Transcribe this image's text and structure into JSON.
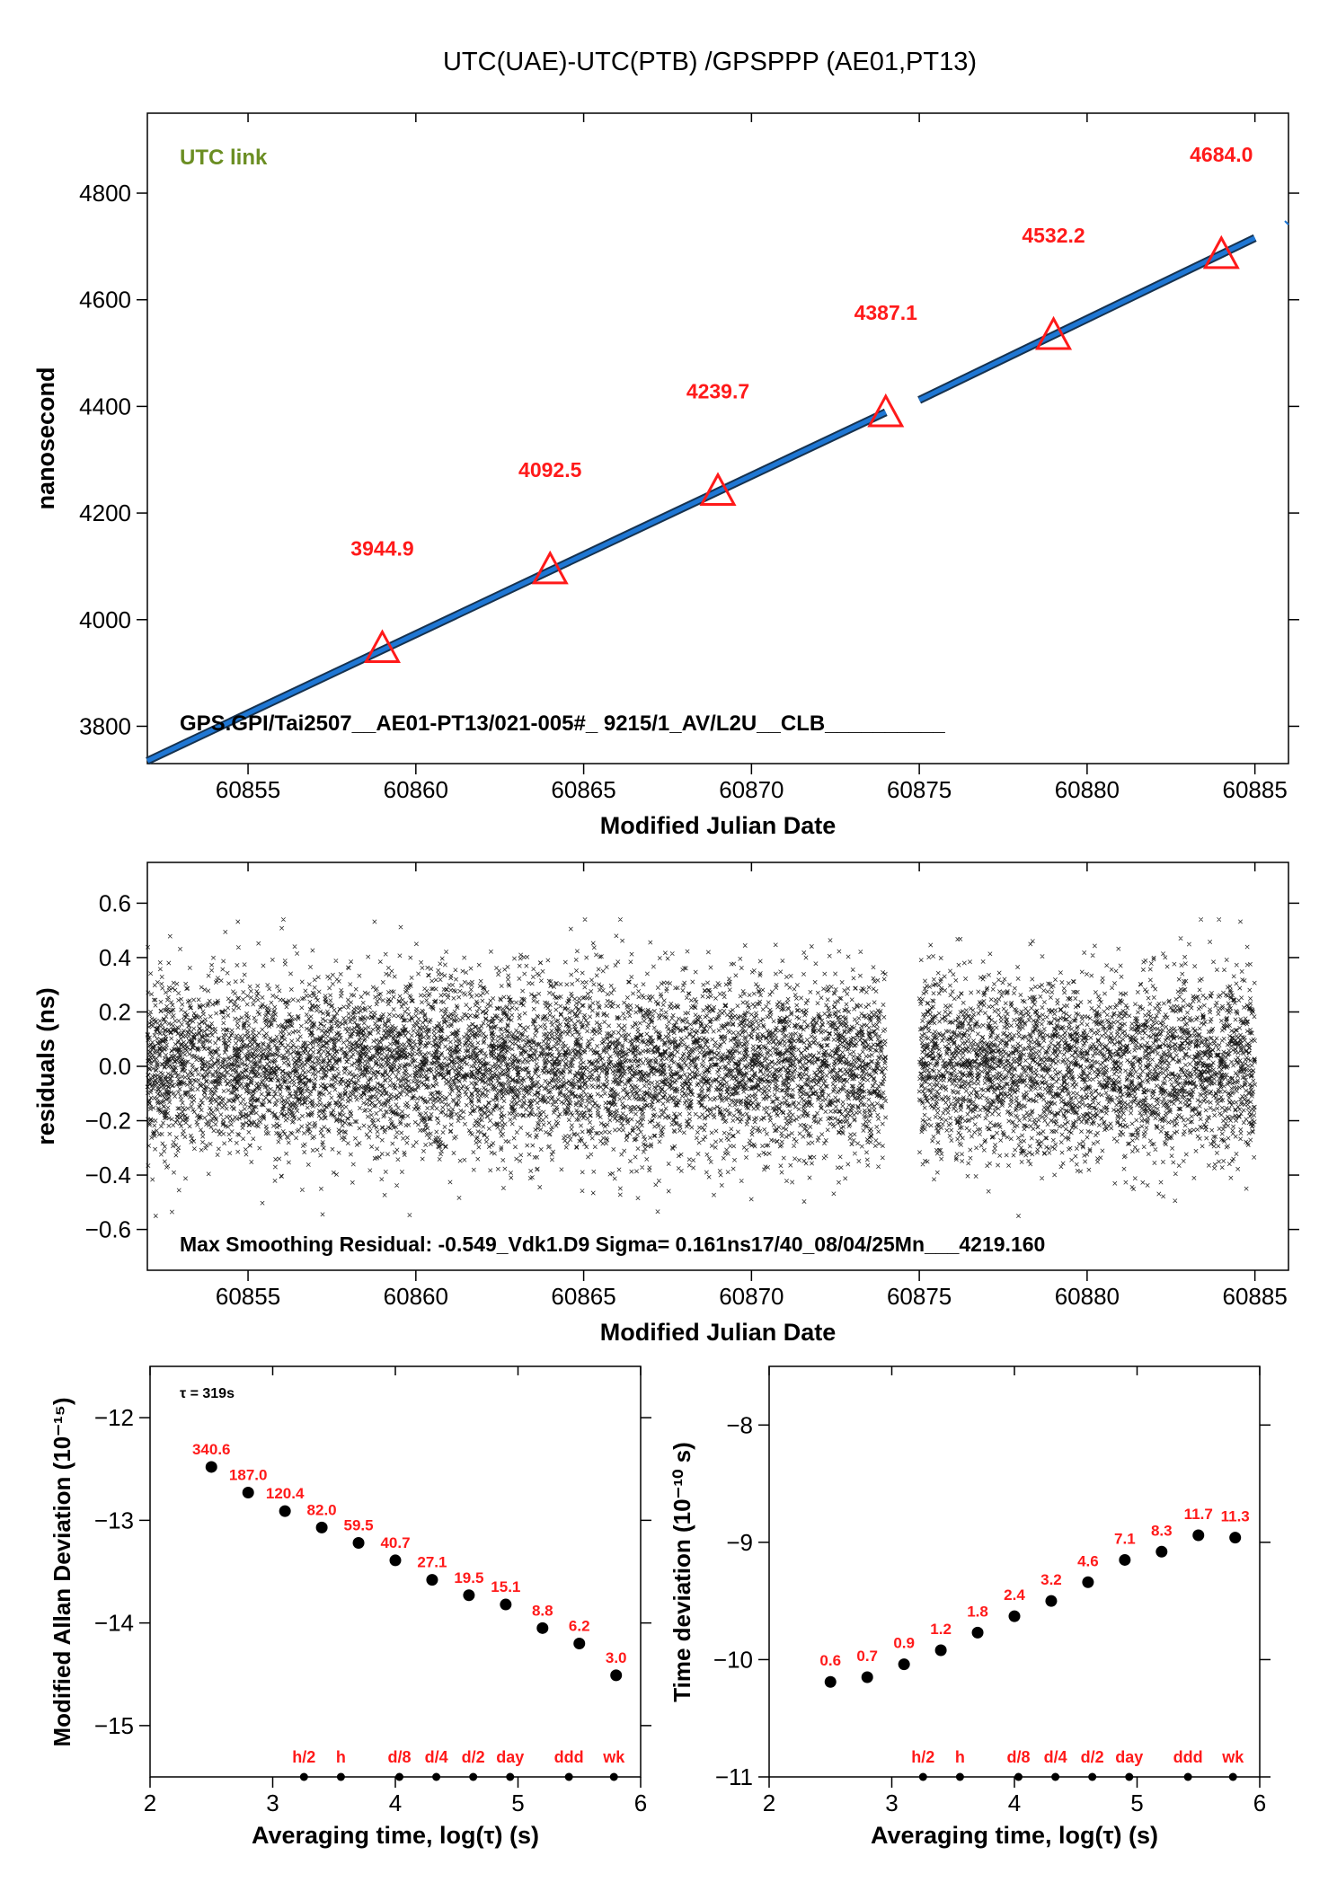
{
  "page_title": "UTC(UAE)-UTC(PTB)  /GPSPPP  (AE01,PT13)",
  "colors": {
    "red": "#ff1a1a",
    "green": "#6b8e23",
    "blue": "#1f77d4",
    "black": "#000000"
  },
  "chart_data": [
    {
      "type": "line",
      "name": "time-offset",
      "link_label": "UTC link",
      "xlabel": "Modified Julian Date",
      "ylabel": "nanosecond",
      "xlim": [
        60852,
        60886
      ],
      "ylim": [
        3730,
        4950
      ],
      "xticks": [
        60855,
        60860,
        60865,
        60870,
        60875,
        60880,
        60885
      ],
      "yticks": [
        3800,
        4000,
        4200,
        4400,
        4600,
        4800
      ],
      "series": [
        {
          "x": [
            60852,
            60874
          ],
          "y": [
            3735,
            4389
          ]
        },
        {
          "x": [
            60875,
            60885
          ],
          "y": [
            4412,
            4716
          ]
        }
      ],
      "markers": [
        {
          "x": 60859,
          "y": 3944.9,
          "label": "3944.9"
        },
        {
          "x": 60864,
          "y": 4092.5,
          "label": "4092.5"
        },
        {
          "x": 60869,
          "y": 4239.7,
          "label": "4239.7"
        },
        {
          "x": 60874,
          "y": 4387.1,
          "label": "4387.1"
        },
        {
          "x": 60879,
          "y": 4532.2,
          "label": "4532.2"
        },
        {
          "x": 60884,
          "y": 4684.0,
          "label": "4684.0"
        }
      ],
      "footnote": "GPS.GPI/Tai2507__AE01-PT13/021-005#_  9215/1_AV/L2U__CLB__________"
    },
    {
      "type": "scatter",
      "name": "residuals",
      "xlabel": "Modified Julian Date",
      "ylabel": "residuals (ns)",
      "xlim": [
        60852,
        60886
      ],
      "ylim": [
        -0.75,
        0.75
      ],
      "xticks": [
        60855,
        60860,
        60865,
        60870,
        60875,
        60880,
        60885
      ],
      "yticks": [
        -0.6,
        -0.4,
        -0.2,
        0.0,
        0.2,
        0.4,
        0.6
      ],
      "ytick_labels": [
        "−0.6",
        "−0.4",
        "−0.2",
        "0.0",
        "0.2",
        "0.4",
        "0.6"
      ],
      "segments": [
        [
          60852,
          60874
        ],
        [
          60875,
          60885
        ]
      ],
      "sigma_ns": 0.161,
      "footnote": "Max Smoothing Residual: -0.549_Vdk1.D9  Sigma= 0.161ns17/40_08/04/25Mn___4219.160"
    },
    {
      "type": "scatter",
      "name": "modified-allan-deviation",
      "xlabel": "Averaging time, log(τ) (s)",
      "ylabel": "Modified Allan Deviation (10⁻¹⁵)",
      "tau_note": "τ = 319s",
      "xlim": [
        2,
        6
      ],
      "ylim": [
        -15.5,
        -11.5
      ],
      "xticks": [
        2,
        3,
        4,
        5,
        6
      ],
      "yticks": [
        -15,
        -14,
        -13,
        -12
      ],
      "ytick_labels": [
        "−15",
        "−14",
        "−13",
        "−12"
      ],
      "x": [
        2.5,
        2.8,
        3.1,
        3.4,
        3.7,
        4.0,
        4.3,
        4.6,
        4.9,
        5.2,
        5.5,
        5.8
      ],
      "y": [
        -12.48,
        -12.73,
        -12.91,
        -13.07,
        -13.22,
        -13.39,
        -13.58,
        -13.73,
        -13.82,
        -14.05,
        -14.2,
        -14.51
      ],
      "labels": [
        "340.6",
        "187.0",
        "120.4",
        "82.0",
        "59.5",
        "40.7",
        "27.1",
        "19.5",
        "15.1",
        "8.8",
        "6.2",
        "3.0"
      ],
      "interval_marks": [
        {
          "x": 3.255,
          "label": "h/2"
        },
        {
          "x": 3.556,
          "label": "h"
        },
        {
          "x": 4.033,
          "label": "d/8"
        },
        {
          "x": 4.334,
          "label": "d/4"
        },
        {
          "x": 4.635,
          "label": "d/2"
        },
        {
          "x": 4.936,
          "label": "day"
        },
        {
          "x": 5.415,
          "label": "ddd"
        },
        {
          "x": 5.782,
          "label": "wk"
        }
      ]
    },
    {
      "type": "scatter",
      "name": "time-deviation",
      "xlabel": "Averaging time, log(τ) (s)",
      "ylabel": "Time deviation (10⁻¹⁰ s)",
      "xlim": [
        2,
        6
      ],
      "ylim": [
        -11,
        -7.5
      ],
      "xticks": [
        2,
        3,
        4,
        5,
        6
      ],
      "yticks": [
        -11,
        -10,
        -9,
        -8
      ],
      "ytick_labels": [
        "−11",
        "−10",
        "−9",
        "−8"
      ],
      "x": [
        2.5,
        2.8,
        3.1,
        3.4,
        3.7,
        4.0,
        4.3,
        4.6,
        4.9,
        5.2,
        5.5,
        5.8
      ],
      "y": [
        -10.19,
        -10.15,
        -10.04,
        -9.92,
        -9.77,
        -9.63,
        -9.5,
        -9.34,
        -9.15,
        -9.08,
        -8.94,
        -8.96
      ],
      "labels": [
        "0.6",
        "0.7",
        "0.9",
        "1.2",
        "1.8",
        "2.4",
        "3.2",
        "4.6",
        "7.1",
        "8.3",
        "11.7",
        "11.3"
      ],
      "interval_marks": [
        {
          "x": 3.255,
          "label": "h/2"
        },
        {
          "x": 3.556,
          "label": "h"
        },
        {
          "x": 4.033,
          "label": "d/8"
        },
        {
          "x": 4.334,
          "label": "d/4"
        },
        {
          "x": 4.635,
          "label": "d/2"
        },
        {
          "x": 4.936,
          "label": "day"
        },
        {
          "x": 5.415,
          "label": "ddd"
        },
        {
          "x": 5.782,
          "label": "wk"
        }
      ]
    }
  ]
}
